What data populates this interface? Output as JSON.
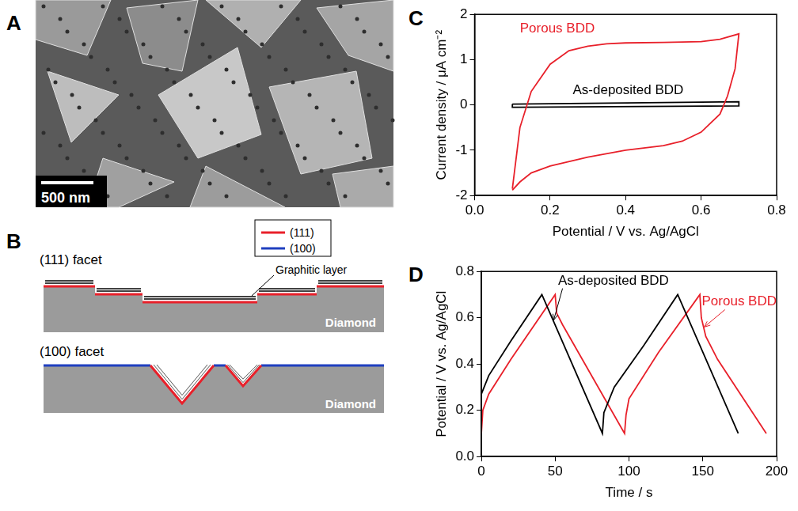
{
  "panels": [
    {
      "panel": "A",
      "image": {
        "scale_bar": "500 nm"
      }
    },
    {
      "panel": "B",
      "diagram": {
        "legend": [
          {
            "label": "(111)",
            "color": "#e8202a"
          },
          {
            "label": "(100)",
            "color": "#1f3fbf"
          }
        ],
        "facets": [
          {
            "title": "(111) facet",
            "annotation": "Graphitic layer",
            "substrate": "Diamond"
          },
          {
            "title": "(100) facet",
            "substrate": "Diamond"
          }
        ]
      }
    }
  ],
  "chart_data": [
    {
      "panel": "C",
      "type": "line",
      "x_label": "Potential / V vs. Ag/AgCl",
      "y_label": "Current density / μA cm⁻²",
      "xlim": [
        0,
        0.8
      ],
      "xticks": [
        {
          "value": 0,
          "label": "0.0"
        },
        0.2,
        0.4,
        0.6,
        0.8
      ],
      "ylim": [
        -2,
        2
      ],
      "yticks": [
        -2,
        -1,
        0,
        1,
        2
      ],
      "grid": false,
      "series": [
        {
          "name": "Porous BDD",
          "color": "#e8202a",
          "x": [
            0.1,
            0.12,
            0.15,
            0.2,
            0.25,
            0.3,
            0.35,
            0.4,
            0.5,
            0.6,
            0.65,
            0.7,
            0.69,
            0.67,
            0.65,
            0.6,
            0.55,
            0.5,
            0.4,
            0.3,
            0.2,
            0.15,
            0.12,
            0.1
          ],
          "values": [
            -1.85,
            -0.5,
            0.3,
            0.9,
            1.2,
            1.3,
            1.35,
            1.37,
            1.38,
            1.4,
            1.45,
            1.57,
            0.8,
            0.2,
            -0.2,
            -0.6,
            -0.8,
            -0.9,
            -1.0,
            -1.15,
            -1.35,
            -1.5,
            -1.7,
            -1.88
          ]
        },
        {
          "name": "As-deposited BDD",
          "color": "#000000",
          "x": [
            0.1,
            0.7,
            0.7,
            0.1,
            0.1
          ],
          "values": [
            0.02,
            0.07,
            -0.02,
            -0.05,
            0.02
          ]
        }
      ]
    },
    {
      "panel": "D",
      "type": "line",
      "x_label": "Time / s",
      "y_label": "Potential / V vs. Ag/AgCl",
      "xlim": [
        0,
        200
      ],
      "xticks": [
        0,
        50,
        100,
        150,
        200
      ],
      "ylim": [
        0,
        0.8
      ],
      "yticks": [
        {
          "value": 0,
          "label": "0.0"
        },
        0.2,
        0.4,
        0.6,
        0.8
      ],
      "grid": false,
      "series": [
        {
          "name": "As-deposited BDD",
          "color": "#000000",
          "x": [
            0,
            5,
            20,
            41,
            82,
            83,
            90,
            110,
            133,
            174
          ],
          "values": [
            0.27,
            0.35,
            0.5,
            0.7,
            0.1,
            0.19,
            0.3,
            0.48,
            0.7,
            0.1
          ]
        },
        {
          "name": "Porous BDD",
          "color": "#e8202a",
          "x": [
            0,
            1,
            5,
            20,
            50,
            51,
            55,
            97,
            98,
            100,
            120,
            148,
            149,
            152,
            160,
            193
          ],
          "values": [
            0.1,
            0.2,
            0.27,
            0.42,
            0.7,
            0.62,
            0.57,
            0.1,
            0.18,
            0.25,
            0.45,
            0.7,
            0.6,
            0.52,
            0.42,
            0.1
          ]
        }
      ]
    }
  ]
}
